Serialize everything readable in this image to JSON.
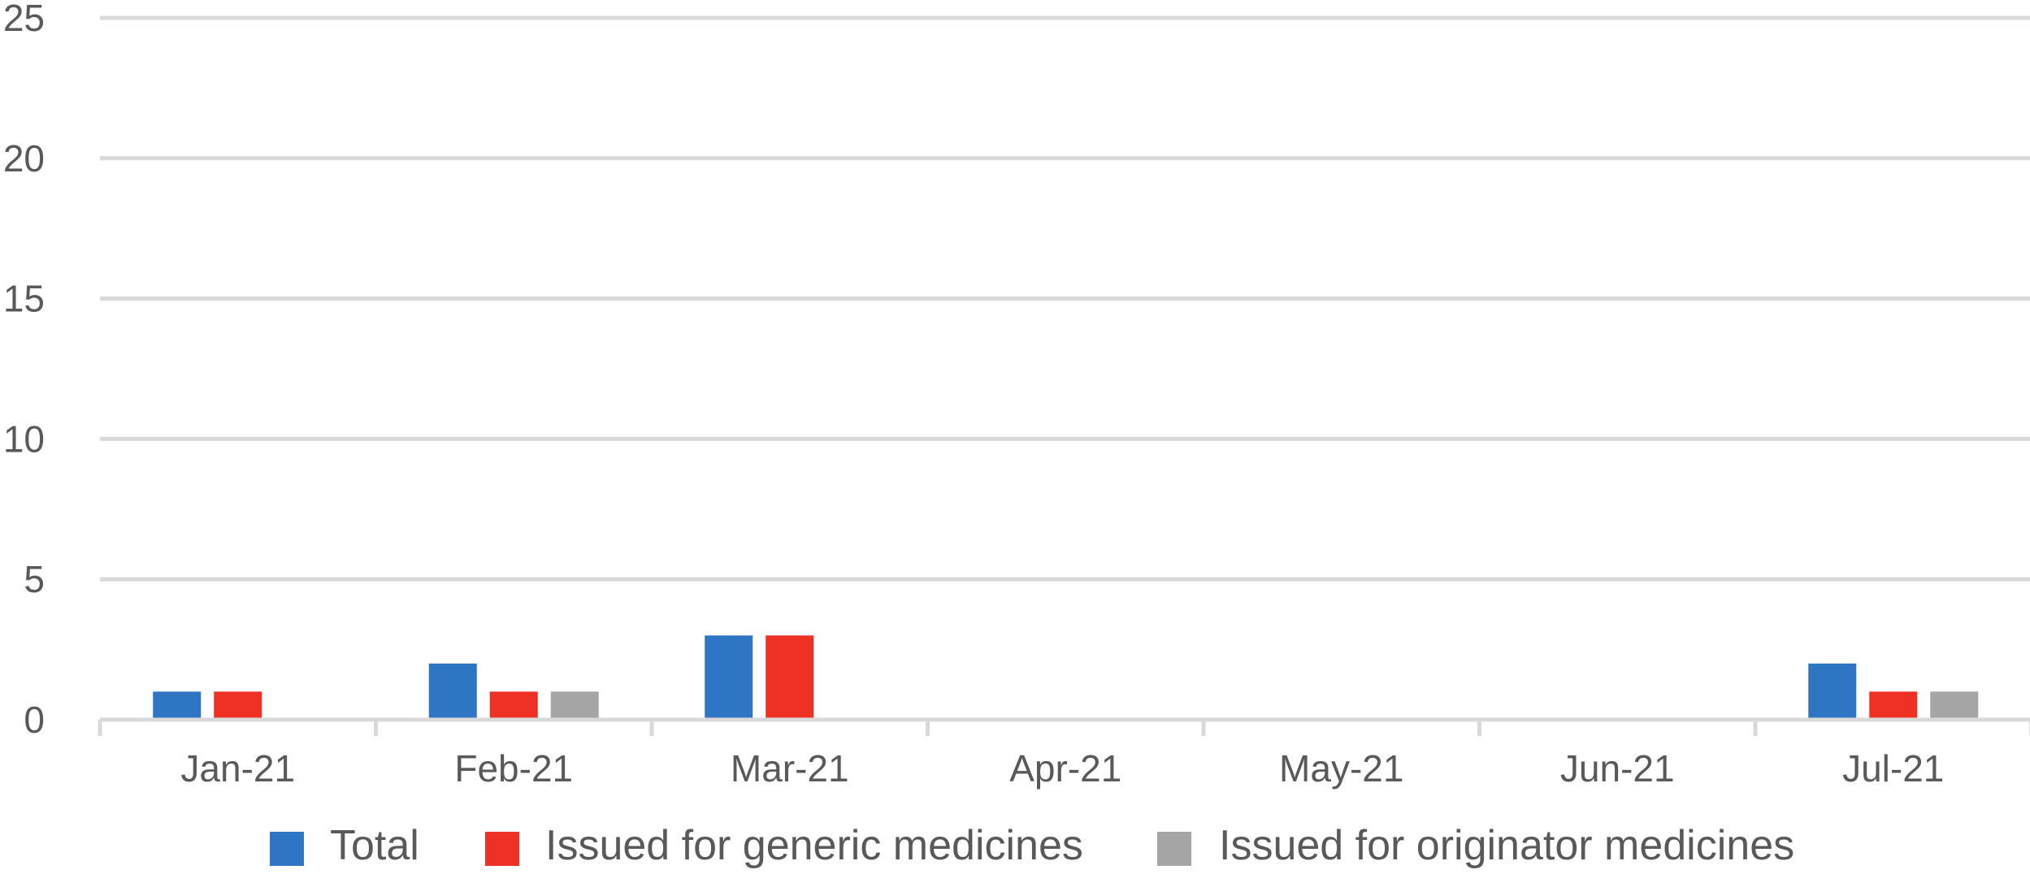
{
  "chart_data": {
    "type": "bar",
    "title": "",
    "xlabel": "",
    "ylabel": "",
    "ylim": [
      0,
      25
    ],
    "yticks": [
      0,
      5,
      10,
      15,
      20,
      25
    ],
    "grid": true,
    "legend_position": "bottom",
    "categories": [
      "Jan-21",
      "Feb-21",
      "Mar-21",
      "Apr-21",
      "May-21",
      "Jun-21",
      "Jul-21"
    ],
    "series": [
      {
        "name": "Total",
        "color": "#2E75C4",
        "values": [
          1,
          2,
          3,
          0,
          0,
          0,
          2
        ]
      },
      {
        "name": "Issued for generic medicines",
        "color": "#EE3124",
        "values": [
          1,
          1,
          3,
          0,
          0,
          0,
          1
        ]
      },
      {
        "name": "Issued for originator medicines",
        "color": "#A5A5A5",
        "values": [
          0,
          1,
          0,
          0,
          0,
          0,
          1
        ]
      }
    ]
  }
}
